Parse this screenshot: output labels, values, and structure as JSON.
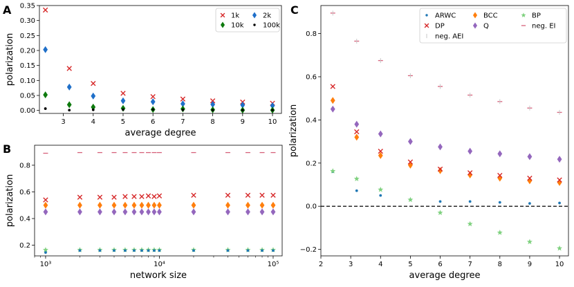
{
  "panels": {
    "a": "A",
    "b": "B",
    "c": "C"
  },
  "chart_data": [
    {
      "type": "scatter",
      "xlabel": "average degree",
      "ylabel": "polarization",
      "xlim": [
        2.2,
        10.3
      ],
      "ylim": [
        -0.01,
        0.35
      ],
      "xticks": [
        3,
        4,
        5,
        6,
        7,
        8,
        9,
        10
      ],
      "xtick_labels": [
        "3",
        "4",
        "5",
        "6",
        "7",
        "8",
        "9",
        "10"
      ],
      "yticks": [
        0.0,
        0.05,
        0.1,
        0.15,
        0.2,
        0.25,
        0.3,
        0.35
      ],
      "ytick_labels": [
        "0.00",
        "0.05",
        "0.10",
        "0.15",
        "0.20",
        "0.25",
        "0.30",
        "0.35"
      ],
      "legend_position": "top-right",
      "x": [
        2.4,
        3.2,
        4,
        5,
        6,
        7,
        8,
        9,
        10
      ],
      "series": [
        {
          "name": "1k",
          "marker": "x",
          "color": "#d62728",
          "values": [
            0.335,
            0.14,
            0.09,
            0.057,
            0.046,
            0.038,
            0.032,
            0.028,
            0.024
          ]
        },
        {
          "name": "2k",
          "marker": "diamond",
          "color": "#1f6fc9",
          "values": [
            0.203,
            0.078,
            0.048,
            0.032,
            0.029,
            0.022,
            0.02,
            0.018,
            0.016
          ]
        },
        {
          "name": "10k",
          "marker": "diamond",
          "color": "#0e7a0e",
          "values": [
            0.052,
            0.019,
            0.011,
            0.007,
            0.003,
            0.005,
            0.002,
            0.001,
            0.001
          ]
        },
        {
          "name": "100k",
          "marker": "dot",
          "color": "#000000",
          "values": [
            0.006,
            0.001,
            0.002,
            0.003,
            0.003,
            0.002,
            0.001,
            0.001,
            0.001
          ]
        }
      ]
    },
    {
      "type": "scatter",
      "xlabel": "network size",
      "ylabel": "polarization",
      "xscale": "log",
      "xlim": [
        800,
        120000
      ],
      "ylim": [
        0.12,
        0.95
      ],
      "xticks": [
        1000,
        10000,
        100000
      ],
      "xtick_labels": [
        "10³",
        "10⁴",
        "10⁵"
      ],
      "yticks": [
        0.2,
        0.4,
        0.6,
        0.8
      ],
      "ytick_labels": [
        "0.2",
        "0.4",
        "0.6",
        "0.8"
      ],
      "x": [
        1000,
        2000,
        3000,
        4000,
        5000,
        6000,
        7000,
        8000,
        9000,
        10000,
        20000,
        40000,
        60000,
        80000,
        100000
      ],
      "series": [
        {
          "name": "neg. EI",
          "marker": "hline",
          "color": "#d6607a",
          "values": [
            0.89,
            0.895,
            0.895,
            0.895,
            0.895,
            0.895,
            0.895,
            0.895,
            0.895,
            0.895,
            0.895,
            0.895,
            0.895,
            0.895,
            0.895
          ]
        },
        {
          "name": "DP",
          "marker": "x",
          "color": "#d62728",
          "values": [
            0.54,
            0.56,
            0.56,
            0.56,
            0.565,
            0.565,
            0.565,
            0.57,
            0.565,
            0.57,
            0.575,
            0.575,
            0.575,
            0.575,
            0.575
          ]
        },
        {
          "name": "BCC",
          "marker": "diamond",
          "color": "#ff7f0e",
          "values": [
            0.5,
            0.5,
            0.5,
            0.5,
            0.5,
            0.5,
            0.5,
            0.5,
            0.5,
            0.5,
            0.5,
            0.5,
            0.5,
            0.5,
            0.5
          ]
        },
        {
          "name": "Q",
          "marker": "diamond",
          "color": "#9467bd",
          "values": [
            0.45,
            0.45,
            0.45,
            0.45,
            0.45,
            0.45,
            0.45,
            0.45,
            0.45,
            0.45,
            0.45,
            0.45,
            0.45,
            0.45,
            0.45
          ]
        },
        {
          "name": "BP",
          "marker": "star",
          "color": "#7fd17f",
          "values": [
            0.165,
            0.165,
            0.165,
            0.165,
            0.165,
            0.165,
            0.165,
            0.165,
            0.165,
            0.165,
            0.165,
            0.165,
            0.165,
            0.165,
            0.165
          ]
        },
        {
          "name": "ARWC",
          "marker": "dot",
          "color": "#1f77b4",
          "values": [
            0.145,
            0.16,
            0.16,
            0.16,
            0.16,
            0.16,
            0.16,
            0.16,
            0.16,
            0.16,
            0.16,
            0.16,
            0.16,
            0.16,
            0.16
          ]
        }
      ]
    },
    {
      "type": "scatter",
      "xlabel": "average degree",
      "ylabel": "polarization",
      "xlim": [
        2,
        10.3
      ],
      "ylim": [
        -0.23,
        0.93
      ],
      "xticks": [
        2,
        3,
        4,
        5,
        6,
        7,
        8,
        9,
        10
      ],
      "xtick_labels": [
        "2",
        "3",
        "4",
        "5",
        "6",
        "7",
        "8",
        "9",
        "10"
      ],
      "yticks": [
        -0.2,
        0.0,
        0.2,
        0.4,
        0.6,
        0.8
      ],
      "ytick_labels": [
        "−0.2",
        "0.0",
        "0.2",
        "0.4",
        "0.6",
        "0.8"
      ],
      "reference_line_y": 0.0,
      "legend_position": "top-right",
      "x": [
        2.4,
        3.2,
        4,
        5,
        6,
        7,
        8,
        9,
        10
      ],
      "series": [
        {
          "name": "ARWC",
          "marker": "dot",
          "color": "#1f77b4",
          "values": [
            0.16,
            0.072,
            0.05,
            0.03,
            0.022,
            0.022,
            0.018,
            0.013,
            0.015
          ]
        },
        {
          "name": "BCC",
          "marker": "diamond",
          "color": "#ff7f0e",
          "values": [
            0.49,
            0.32,
            0.235,
            0.19,
            0.165,
            0.145,
            0.13,
            0.118,
            0.11
          ]
        },
        {
          "name": "BP",
          "marker": "star",
          "color": "#7fd17f",
          "values": [
            0.163,
            0.127,
            0.077,
            0.03,
            -0.03,
            -0.082,
            -0.122,
            -0.165,
            -0.195
          ]
        },
        {
          "name": "DP",
          "marker": "x",
          "color": "#d62728",
          "values": [
            0.555,
            0.345,
            0.255,
            0.205,
            0.172,
            0.155,
            0.143,
            0.13,
            0.122
          ]
        },
        {
          "name": "Q",
          "marker": "diamond",
          "color": "#9467bd",
          "values": [
            0.45,
            0.38,
            0.335,
            0.3,
            0.275,
            0.255,
            0.243,
            0.23,
            0.218
          ]
        },
        {
          "name": "neg. EI",
          "marker": "hline",
          "color": "#d6607a",
          "values": [
            0.895,
            0.765,
            0.675,
            0.605,
            0.555,
            0.515,
            0.485,
            0.455,
            0.435
          ]
        },
        {
          "name": "neg. AEI",
          "marker": "vline",
          "color": "#c7c7c7",
          "values": [
            0.895,
            0.765,
            0.675,
            0.605,
            0.555,
            0.515,
            0.485,
            0.455,
            0.435
          ]
        }
      ]
    }
  ]
}
